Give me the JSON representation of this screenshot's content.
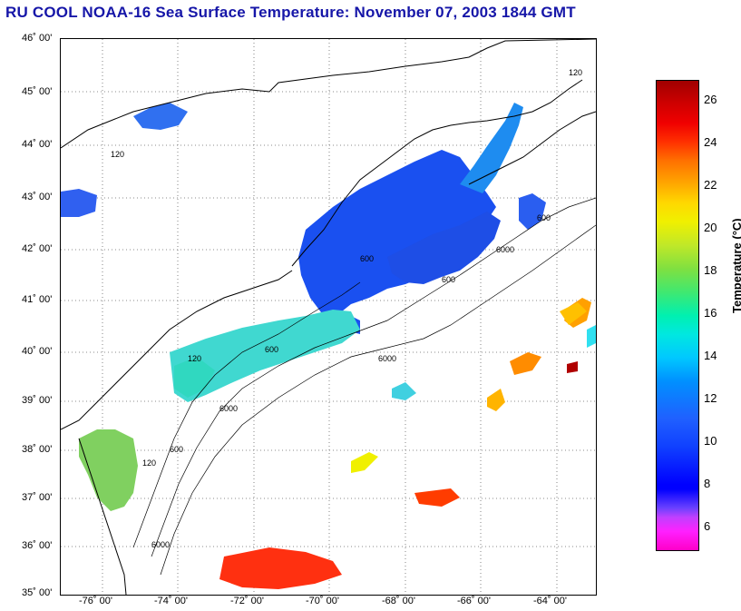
{
  "title": "RU COOL  NOAA-16  Sea Surface Temperature:  November 07, 2003 1844 GMT",
  "lat_labels": [
    "46˚ 00'",
    "45˚ 00'",
    "44˚ 00'",
    "43˚ 00'",
    "42˚ 00'",
    "41˚ 00'",
    "40˚ 00'",
    "39˚ 00'",
    "38˚ 00'",
    "37˚ 00'",
    "36˚ 00'",
    "35˚ 00'"
  ],
  "lon_labels": [
    "-76˚ 00'",
    "-74˚ 00'",
    "-72˚ 00'",
    "-70˚ 00'",
    "-68˚ 00'",
    "-66˚ 00'",
    "-64˚ 00'"
  ],
  "colorbar": {
    "title": "Temperature (°C)",
    "ticks": [
      "26",
      "24",
      "22",
      "20",
      "18",
      "16",
      "14",
      "12",
      "10",
      "8",
      "6"
    ],
    "range": [
      5,
      27
    ]
  },
  "contour_labels": [
    "120",
    "600",
    "6000",
    "600",
    "600",
    "120",
    "6000",
    "600",
    "120",
    "6000",
    "600",
    "120",
    "6000"
  ],
  "colors": {
    "title": "#1616a8",
    "land_outline": "#000000"
  }
}
